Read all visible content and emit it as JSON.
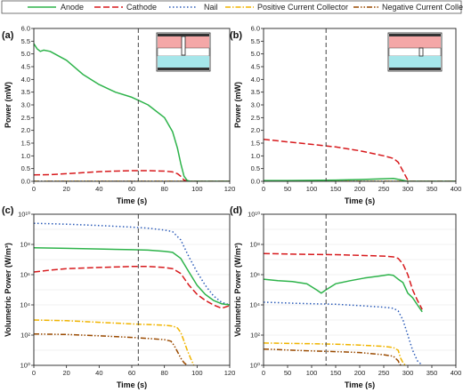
{
  "legend": {
    "items": [
      {
        "name": "Anode",
        "color": "#2db34a",
        "dash": "solid"
      },
      {
        "name": "Cathode",
        "color": "#d7191c",
        "dash": "long"
      },
      {
        "name": "Nail",
        "color": "#2b5bb8",
        "dash": "dot"
      },
      {
        "name": "Positive Current Collector",
        "color": "#f0b400",
        "dash": "dashdot"
      },
      {
        "name": "Negative Current Collector",
        "color": "#9a4a00",
        "dash": "dashdotdot"
      }
    ]
  },
  "chart_data": [
    {
      "type": "line",
      "panel_label": "(a)",
      "xlabel": "Time (s)",
      "ylabel": "Power (mW)",
      "xlim": [
        0,
        120
      ],
      "ylim": [
        0,
        6
      ],
      "xticks": [
        "0",
        "20",
        "40",
        "60",
        "80",
        "100",
        "120"
      ],
      "yticks": [
        "0.0",
        "0.5",
        "1.0",
        "1.5",
        "2.0",
        "2.5",
        "3.0",
        "3.5",
        "4.0",
        "4.5",
        "5.0",
        "5.5",
        "6.0"
      ],
      "vline": 64,
      "series": [
        {
          "name": "Anode",
          "x": [
            0,
            2,
            4,
            6,
            10,
            20,
            30,
            40,
            50,
            60,
            65,
            70,
            80,
            85,
            88,
            90,
            92,
            94,
            96,
            100,
            120
          ],
          "y": [
            5.4,
            5.2,
            5.1,
            5.15,
            5.1,
            4.75,
            4.2,
            3.8,
            3.5,
            3.3,
            3.15,
            3.0,
            2.5,
            1.95,
            1.3,
            0.7,
            0.2,
            0.03,
            0,
            0,
            0
          ]
        },
        {
          "name": "Cathode",
          "x": [
            0,
            10,
            20,
            30,
            40,
            50,
            60,
            65,
            70,
            80,
            85,
            88,
            90,
            92,
            95,
            100,
            120
          ],
          "y": [
            0.25,
            0.26,
            0.3,
            0.34,
            0.38,
            0.4,
            0.42,
            0.42,
            0.42,
            0.4,
            0.37,
            0.3,
            0.2,
            0.05,
            0,
            0,
            0
          ]
        },
        {
          "name": "Nail",
          "x": [
            0,
            120
          ],
          "y": [
            0,
            0
          ]
        },
        {
          "name": "Positive Current Collector",
          "x": [
            0,
            120
          ],
          "y": [
            0,
            0
          ]
        },
        {
          "name": "Negative Current Collector",
          "x": [
            0,
            120
          ],
          "y": [
            0,
            0
          ]
        }
      ]
    },
    {
      "type": "line",
      "panel_label": "(b)",
      "xlabel": "Time (s)",
      "ylabel": "Power (mW)",
      "xlim": [
        0,
        400
      ],
      "ylim": [
        0,
        6
      ],
      "xticks": [
        "0",
        "50",
        "100",
        "150",
        "200",
        "250",
        "300",
        "350",
        "400"
      ],
      "yticks": [
        "0.0",
        "0.5",
        "1.0",
        "1.5",
        "2.0",
        "2.5",
        "3.0",
        "3.5",
        "4.0",
        "4.5",
        "5.0",
        "5.5",
        "6.0"
      ],
      "vline": 130,
      "series": [
        {
          "name": "Anode",
          "x": [
            0,
            50,
            100,
            150,
            200,
            250,
            270,
            280,
            290,
            300,
            400
          ],
          "y": [
            0.03,
            0.03,
            0.04,
            0.05,
            0.07,
            0.1,
            0.11,
            0.08,
            0.04,
            0,
            0
          ]
        },
        {
          "name": "Cathode",
          "x": [
            0,
            50,
            100,
            150,
            200,
            250,
            270,
            280,
            290,
            300,
            305,
            400
          ],
          "y": [
            1.65,
            1.55,
            1.45,
            1.35,
            1.2,
            1.0,
            0.9,
            0.75,
            0.4,
            0.05,
            0,
            0
          ]
        },
        {
          "name": "Nail",
          "x": [
            0,
            400
          ],
          "y": [
            0,
            0
          ]
        },
        {
          "name": "Positive Current Collector",
          "x": [
            0,
            400
          ],
          "y": [
            0,
            0
          ]
        },
        {
          "name": "Negative Current Collector",
          "x": [
            0,
            400
          ],
          "y": [
            0,
            0
          ]
        }
      ]
    },
    {
      "type": "line",
      "panel_label": "(c)",
      "yscale": "log",
      "xlabel": "Time (s)",
      "ylabel": "Volumetric Power (W/m³)",
      "xlim": [
        0,
        120
      ],
      "ylim": [
        1,
        10000000000
      ],
      "xticks": [
        "0",
        "20",
        "40",
        "60",
        "80",
        "100",
        "120"
      ],
      "yticks": [
        "10⁰",
        "10²",
        "10⁴",
        "10⁶",
        "10⁸",
        "10¹⁰"
      ],
      "vline": 64,
      "series": [
        {
          "name": "Anode",
          "x": [
            0,
            20,
            40,
            60,
            70,
            80,
            85,
            90,
            95,
            100,
            105,
            110,
            115,
            120
          ],
          "y": [
            60000000,
            55000000,
            50000000,
            45000000,
            42000000,
            35000000,
            30000000,
            12000000,
            1500000,
            200000,
            50000,
            20000,
            12000,
            10000
          ]
        },
        {
          "name": "Cathode",
          "x": [
            0,
            10,
            20,
            40,
            60,
            70,
            80,
            85,
            90,
            95,
            100,
            105,
            110,
            115,
            120
          ],
          "y": [
            1500000,
            2000000,
            2500000,
            3000000,
            3500000,
            3500000,
            3000000,
            2500000,
            1200000,
            200000,
            50000,
            20000,
            10000,
            6000,
            9000
          ]
        },
        {
          "name": "Nail",
          "x": [
            0,
            20,
            40,
            60,
            70,
            80,
            85,
            90,
            95,
            100,
            105,
            110,
            115,
            120
          ],
          "y": [
            2500000000,
            2200000000,
            1800000000,
            1400000000,
            1200000000,
            900000000,
            700000000,
            200000000,
            15000000,
            1500000,
            200000,
            40000,
            15000,
            10000
          ]
        },
        {
          "name": "Positive Current Collector",
          "x": [
            0,
            20,
            40,
            60,
            70,
            80,
            85,
            88,
            90,
            92,
            94,
            96,
            98
          ],
          "y": [
            1000,
            900,
            700,
            550,
            500,
            450,
            400,
            300,
            150,
            40,
            10,
            3,
            1
          ]
        },
        {
          "name": "Negative Current Collector",
          "x": [
            0,
            20,
            40,
            60,
            70,
            80,
            84,
            86,
            88,
            90,
            92,
            94
          ],
          "y": [
            120,
            110,
            90,
            70,
            60,
            50,
            40,
            20,
            8,
            3,
            1.5,
            1
          ]
        }
      ]
    },
    {
      "type": "line",
      "panel_label": "(d)",
      "yscale": "log",
      "xlabel": "Time (s)",
      "ylabel": "Volumetric Power (W/m³)",
      "xlim": [
        0,
        400
      ],
      "ylim": [
        1,
        10000000000
      ],
      "xticks": [
        "0",
        "50",
        "100",
        "150",
        "200",
        "250",
        "300",
        "350",
        "400"
      ],
      "yticks": [
        "10⁰",
        "10²",
        "10⁴",
        "10⁶",
        "10⁸",
        "10¹⁰"
      ],
      "vline": 130,
      "series": [
        {
          "name": "Anode",
          "x": [
            0,
            30,
            60,
            90,
            110,
            120,
            130,
            150,
            180,
            210,
            240,
            260,
            270,
            280,
            290,
            300,
            310,
            320,
            330
          ],
          "y": [
            500000,
            400000,
            350000,
            250000,
            100000,
            60000,
            100000,
            250000,
            400000,
            600000,
            800000,
            1000000,
            900000,
            500000,
            300000,
            60000,
            30000,
            10000,
            3500
          ]
        },
        {
          "name": "Cathode",
          "x": [
            0,
            30,
            60,
            100,
            150,
            200,
            250,
            270,
            280,
            290,
            300,
            310,
            320,
            330
          ],
          "y": [
            25000000,
            24000000,
            23000000,
            22000000,
            21000000,
            19000000,
            17000000,
            15000000,
            12000000,
            5000000,
            1000000,
            100000,
            20000,
            5000
          ]
        },
        {
          "name": "Nail",
          "x": [
            0,
            30,
            60,
            100,
            150,
            200,
            250,
            270,
            280,
            290,
            300,
            310,
            320,
            330
          ],
          "y": [
            15000,
            14000,
            13000,
            12000,
            11000,
            9000,
            7000,
            6000,
            4000,
            1000,
            100,
            10,
            2,
            1
          ]
        },
        {
          "name": "Positive Current Collector",
          "x": [
            0,
            30,
            60,
            100,
            150,
            200,
            250,
            270,
            280,
            285,
            290,
            295
          ],
          "y": [
            30,
            29,
            28,
            27,
            25,
            22,
            18,
            15,
            10,
            3,
            1.5,
            1
          ]
        },
        {
          "name": "Negative Current Collector",
          "x": [
            0,
            30,
            60,
            100,
            150,
            200,
            250,
            270,
            280,
            283,
            286
          ],
          "y": [
            12,
            11,
            10,
            9,
            8,
            7,
            5,
            4,
            2,
            1.2,
            1
          ]
        }
      ]
    }
  ]
}
